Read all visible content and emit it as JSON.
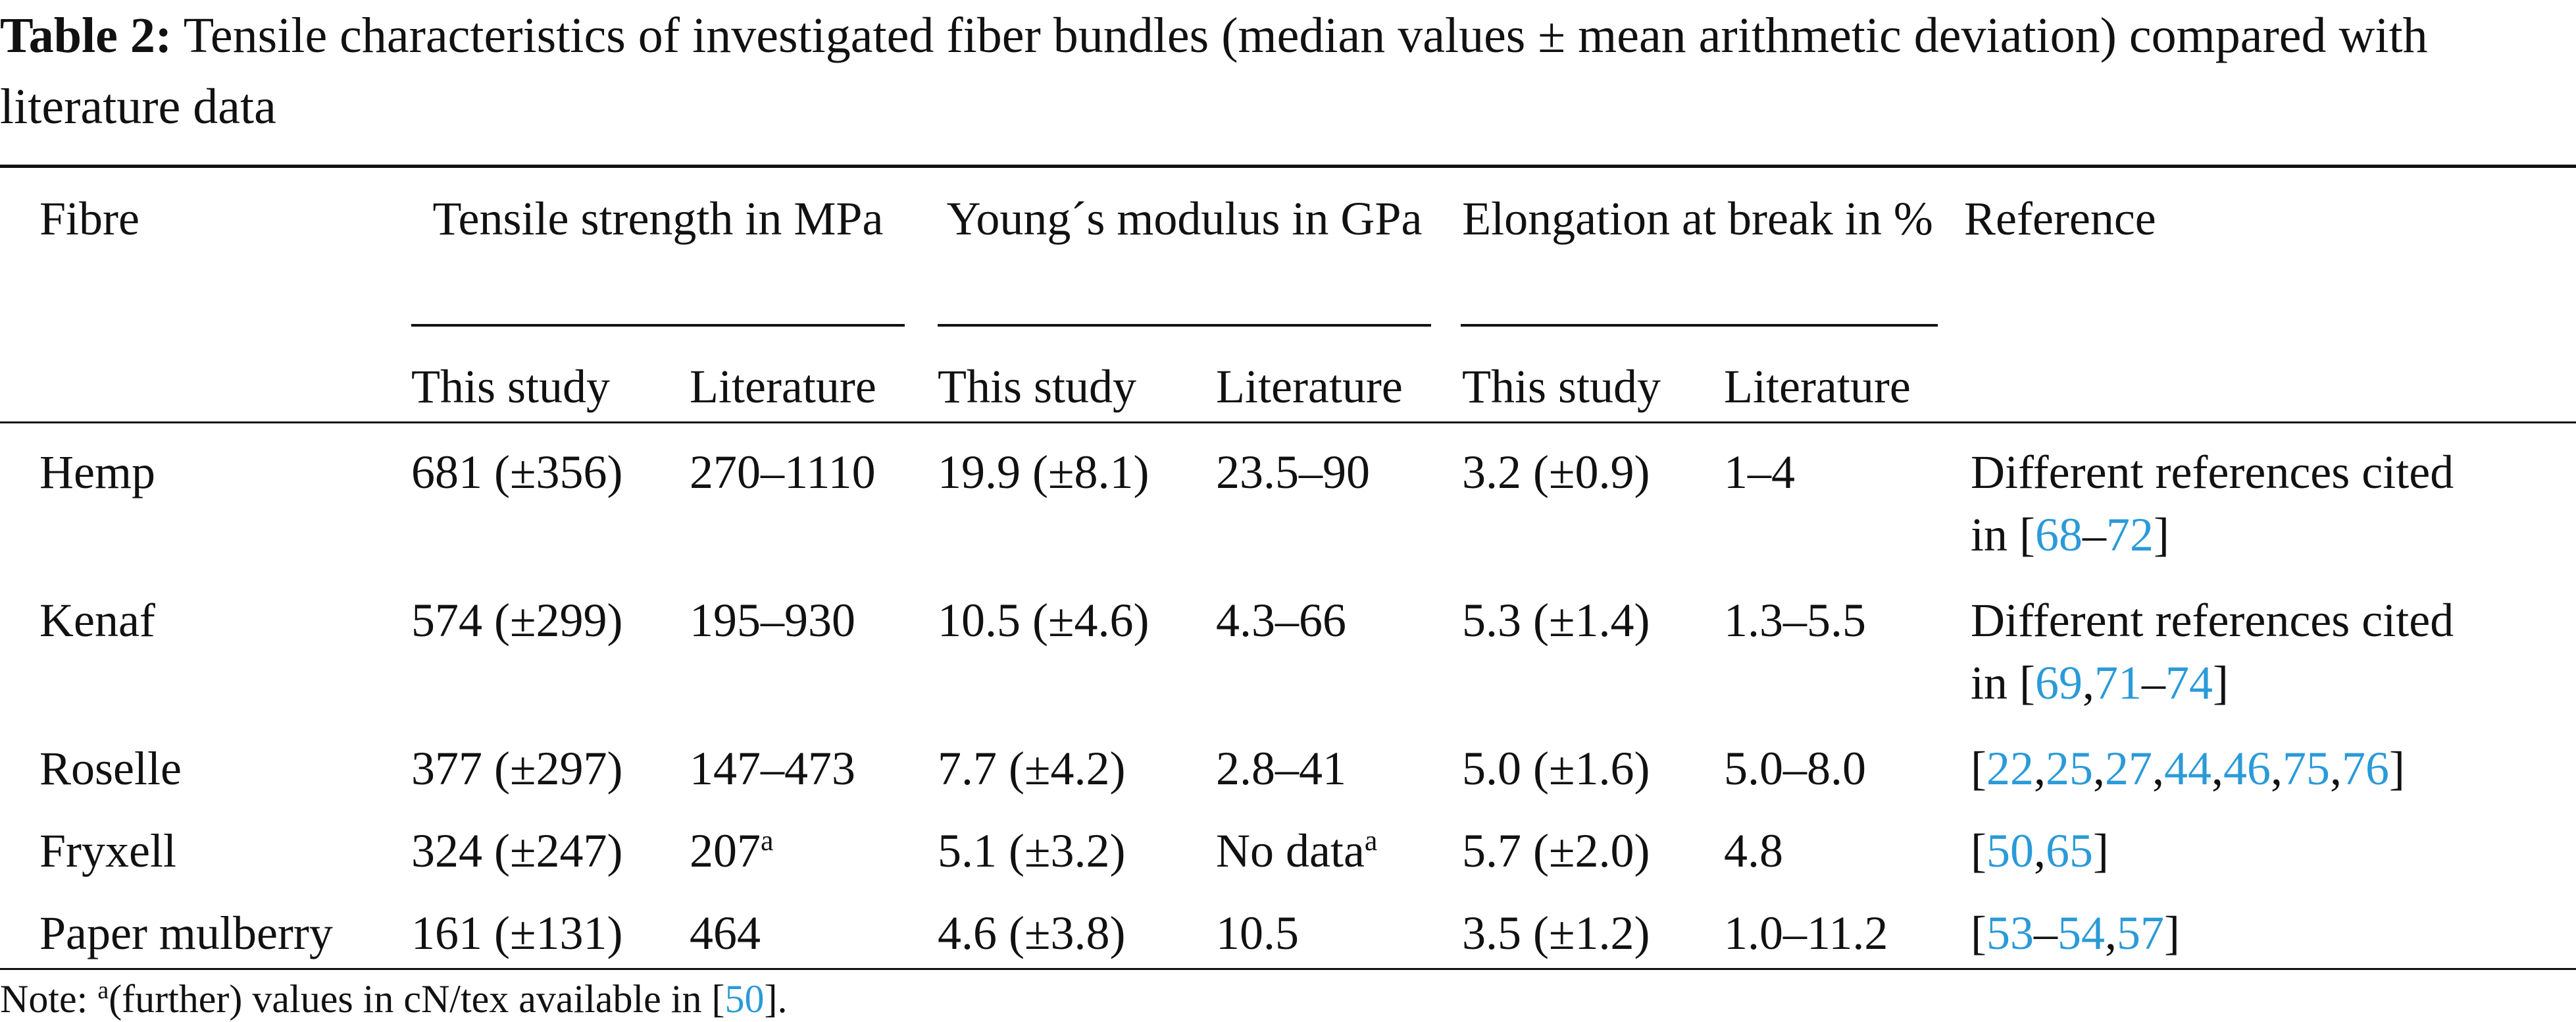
{
  "caption": {
    "label": "Table 2:",
    "text": "Tensile characteristics of investigated fiber bundles (median values ± mean arithmetic deviation) compared with literature data"
  },
  "headers": {
    "fibre": "Fibre",
    "tensile": "Tensile strength in MPa",
    "young": "Young´s modulus in GPa",
    "elongation": "Elongation at break in %",
    "reference": "Reference",
    "sub_this": "This study",
    "sub_lit": "Literature"
  },
  "rows": [
    {
      "fibre": "Hemp",
      "ts_this": "681 (±356)",
      "ts_lit": "270–1110",
      "ym_this": "19.9 (±8.1)",
      "ym_lit": "23.5–90",
      "el_this": "3.2 (±0.9)",
      "el_lit": "1–4",
      "ref_line1": "Different references cited",
      "ref_line2_prefix": "in [",
      "ref_a": "68",
      "ref_dash": "–",
      "ref_b": "72",
      "ref_close": "]"
    },
    {
      "fibre": "Kenaf",
      "ts_this": "574 (±299)",
      "ts_lit": "195–930",
      "ym_this": "10.5 (±4.6)",
      "ym_lit": "4.3–66",
      "el_this": "5.3 (±1.4)",
      "el_lit": "1.3–5.5",
      "ref_line1": "Different references cited",
      "ref_line2_prefix": "in [",
      "ref_a": "69",
      "ref_comma": ",",
      "ref_b": "71",
      "ref_dash": "–",
      "ref_c": "74",
      "ref_close": "]"
    },
    {
      "fibre": "Roselle",
      "ts_this": "377 (±297)",
      "ts_lit": "147–473",
      "ym_this": "7.7 (±4.2)",
      "ym_lit": "2.8–41",
      "el_this": "5.0 (±1.6)",
      "el_lit": "5.0–8.0",
      "refs": [
        "22",
        "25",
        "27",
        "44",
        "46",
        "75",
        "76"
      ]
    },
    {
      "fibre": "Fryxell",
      "ts_this": "324 (±247)",
      "ts_lit": "207",
      "ts_lit_sup": "a",
      "ym_this": "5.1 (±3.2)",
      "ym_lit": "No data",
      "ym_lit_sup": "a",
      "el_this": "5.7 (±2.0)",
      "el_lit": "4.8",
      "refs": [
        "50",
        "65"
      ]
    },
    {
      "fibre": "Paper mulberry",
      "ts_this": "161 (±131)",
      "ts_lit": "464",
      "ym_this": "4.6 (±3.8)",
      "ym_lit": "10.5",
      "el_this": "3.5 (±1.2)",
      "el_lit": "1.0–11.2",
      "ref_open": "[",
      "ref_a": "53",
      "ref_dash": "–",
      "ref_b": "54",
      "ref_comma": ",",
      "ref_c": "57",
      "ref_close": "]"
    }
  ],
  "note": {
    "prefix": "Note: ",
    "sup": "a",
    "text": "(further) values in cN/tex available in [",
    "ref": "50",
    "suffix": "]."
  },
  "colors": {
    "link": "#2b9ad8",
    "text": "#111111"
  }
}
